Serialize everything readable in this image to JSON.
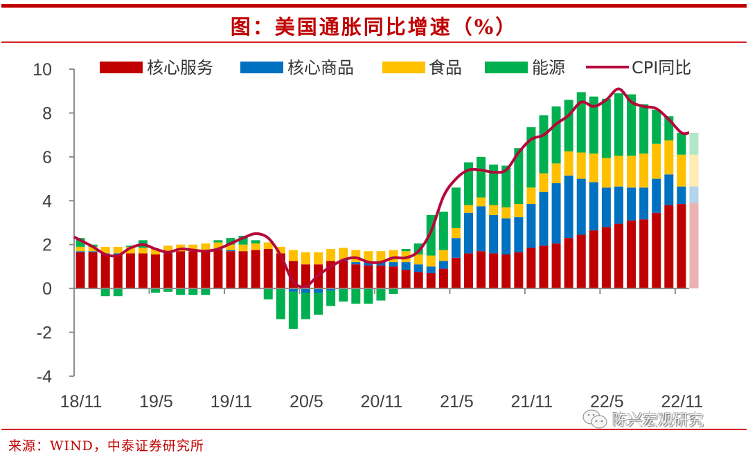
{
  "title": "图：美国通胀同比增速（%）",
  "source": "来源：WIND，中泰证券研究所",
  "watermark": "陈兴宏观研究",
  "colors": {
    "services": "#c00000",
    "goods": "#0070c0",
    "food": "#ffc000",
    "energy": "#00b050",
    "cpi": "#b5083a",
    "frame": "#c00000"
  },
  "chart_data": {
    "type": "bar",
    "stacked": true,
    "title": "美国通胀同比增速（%）",
    "xlabel": "",
    "ylabel": "",
    "ylim": [
      -4,
      10
    ],
    "yticks": [
      10,
      8,
      6,
      4,
      2,
      0,
      -2,
      -4
    ],
    "xtick_labels": [
      "18/11",
      "19/5",
      "19/11",
      "20/5",
      "20/11",
      "21/5",
      "21/11",
      "22/5",
      "22/11"
    ],
    "grid": false,
    "legend_position": "top",
    "legend": [
      "核心服务",
      "核心商品",
      "食品",
      "能源",
      "CPI同比"
    ],
    "categories": [
      "18/11",
      "18/12",
      "19/1",
      "19/2",
      "19/3",
      "19/4",
      "19/5",
      "19/6",
      "19/7",
      "19/8",
      "19/9",
      "19/10",
      "19/11",
      "19/12",
      "20/1",
      "20/2",
      "20/3",
      "20/4",
      "20/5",
      "20/6",
      "20/7",
      "20/8",
      "20/9",
      "20/10",
      "20/11",
      "20/12",
      "21/1",
      "21/2",
      "21/3",
      "21/4",
      "21/5",
      "21/6",
      "21/7",
      "21/8",
      "21/9",
      "21/10",
      "21/11",
      "21/12",
      "22/1",
      "22/2",
      "22/3",
      "22/4",
      "22/5",
      "22/6",
      "22/7",
      "22/8",
      "22/9",
      "22/10",
      "22/11"
    ],
    "series": [
      {
        "name": "核心服务",
        "key": "services",
        "kind": "bar",
        "values": [
          1.65,
          1.65,
          1.55,
          1.55,
          1.6,
          1.6,
          1.55,
          1.6,
          1.7,
          1.7,
          1.7,
          1.75,
          1.7,
          1.7,
          1.75,
          1.8,
          1.6,
          1.25,
          1.1,
          1.1,
          1.25,
          1.25,
          1.1,
          1.05,
          1.05,
          1.0,
          0.85,
          0.75,
          0.7,
          0.9,
          1.4,
          1.6,
          1.7,
          1.6,
          1.55,
          1.65,
          1.85,
          1.95,
          2.05,
          2.3,
          2.45,
          2.65,
          2.8,
          2.95,
          3.1,
          3.15,
          3.45,
          3.8,
          3.85
        ]
      },
      {
        "name": "核心商品",
        "key": "goods",
        "kind": "bar",
        "values": [
          0.05,
          0.05,
          0.05,
          0.05,
          0.0,
          0.0,
          0.0,
          0.05,
          0.0,
          0.0,
          0.05,
          0.05,
          0.05,
          0.0,
          0.0,
          0.0,
          0.0,
          -0.15,
          -0.2,
          -0.2,
          -0.1,
          0.05,
          0.1,
          0.15,
          0.15,
          0.2,
          0.35,
          0.35,
          0.3,
          0.35,
          0.9,
          1.85,
          2.05,
          1.75,
          1.65,
          1.6,
          2.0,
          2.45,
          2.75,
          2.85,
          2.55,
          2.2,
          1.8,
          1.7,
          1.5,
          1.45,
          1.55,
          1.4,
          0.8
        ]
      },
      {
        "name": "食品",
        "key": "food",
        "kind": "bar",
        "values": [
          0.2,
          0.2,
          0.3,
          0.3,
          0.3,
          0.25,
          0.25,
          0.3,
          0.3,
          0.3,
          0.3,
          0.3,
          0.25,
          0.3,
          0.3,
          0.3,
          0.3,
          0.5,
          0.55,
          0.55,
          0.55,
          0.55,
          0.55,
          0.5,
          0.5,
          0.55,
          0.5,
          0.45,
          0.5,
          0.5,
          0.45,
          0.35,
          0.4,
          0.45,
          0.5,
          0.6,
          0.75,
          0.85,
          0.9,
          1.1,
          1.2,
          1.3,
          1.35,
          1.4,
          1.45,
          1.55,
          1.6,
          1.55,
          1.45
        ]
      },
      {
        "name": "能源",
        "key": "energy",
        "kind": "bar",
        "values": [
          0.4,
          0.1,
          -0.35,
          -0.35,
          0.05,
          0.35,
          -0.2,
          -0.15,
          -0.3,
          -0.3,
          -0.3,
          0.1,
          0.3,
          0.4,
          0.15,
          -0.5,
          -1.4,
          -1.7,
          -1.2,
          -1.0,
          -0.7,
          -0.6,
          -0.7,
          -0.7,
          -0.55,
          -0.25,
          0.1,
          0.5,
          1.85,
          1.75,
          1.85,
          1.95,
          1.85,
          1.85,
          1.9,
          2.55,
          2.75,
          2.65,
          2.6,
          2.35,
          2.75,
          2.6,
          2.7,
          2.85,
          2.8,
          2.25,
          1.55,
          1.1,
          1.0
        ]
      },
      {
        "name": "CPI同比",
        "key": "cpi",
        "kind": "line",
        "values": [
          2.2,
          1.9,
          1.55,
          1.5,
          1.85,
          2.0,
          1.8,
          1.65,
          1.8,
          1.75,
          1.7,
          1.8,
          2.05,
          2.3,
          2.5,
          2.3,
          1.5,
          0.3,
          0.1,
          0.6,
          1.0,
          1.3,
          1.4,
          1.2,
          1.2,
          1.4,
          1.4,
          1.7,
          2.6,
          4.2,
          5.0,
          5.4,
          5.4,
          5.3,
          5.4,
          6.2,
          6.8,
          7.0,
          7.5,
          7.9,
          8.5,
          8.3,
          8.6,
          9.1,
          8.5,
          8.3,
          8.2,
          7.7,
          7.1
        ]
      }
    ],
    "partial_last_bar": {
      "category": "22/12",
      "services": 3.9,
      "goods": 0.75,
      "food": 1.45,
      "energy": 1.0,
      "cpi": 7.1
    }
  }
}
